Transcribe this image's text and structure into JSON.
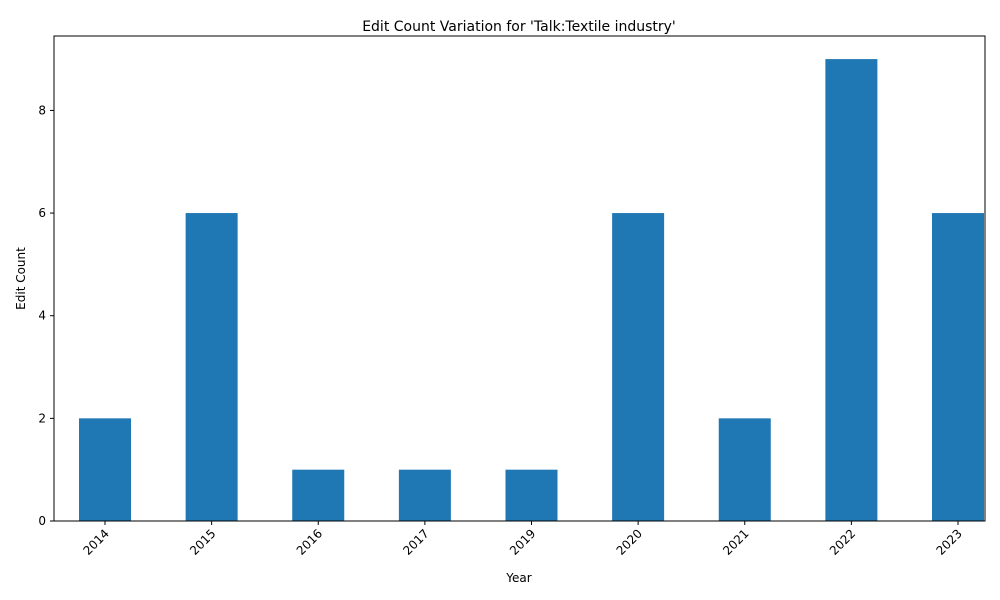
{
  "chart_data": {
    "type": "bar",
    "title": "Edit Count Variation for 'Talk:Textile industry'",
    "xlabel": "Year",
    "ylabel": "Edit Count",
    "categories": [
      "2014",
      "2015",
      "2016",
      "2017",
      "2019",
      "2020",
      "2021",
      "2022",
      "2023"
    ],
    "values": [
      2,
      6,
      1,
      1,
      1,
      6,
      2,
      9,
      6
    ],
    "ylim": [
      0,
      9.45
    ],
    "yticks": [
      0,
      2,
      4,
      6,
      8
    ],
    "grid": false,
    "legend": "none",
    "bar_color": "#1f77b4"
  }
}
